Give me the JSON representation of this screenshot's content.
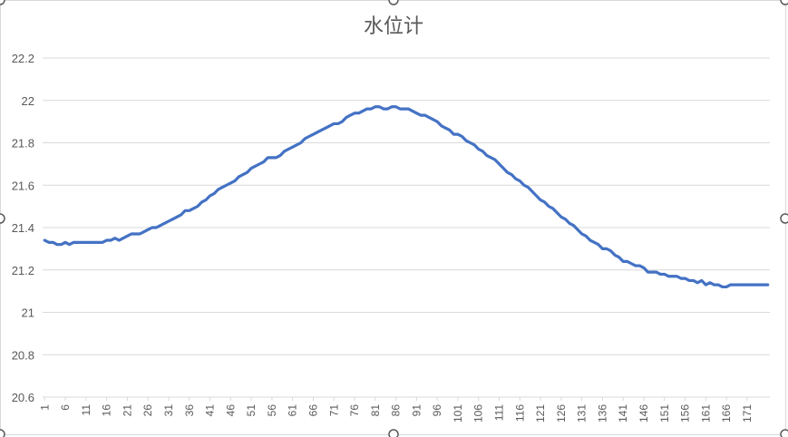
{
  "chart_data": {
    "type": "line",
    "title": "水位计",
    "xlabel": "",
    "ylabel": "",
    "ylim": [
      20.6,
      22.2
    ],
    "y_ticks": [
      "20.6",
      "20.8",
      "21",
      "21.2",
      "21.4",
      "21.6",
      "21.8",
      "22",
      "22.2"
    ],
    "x_tick_labels": [
      "1",
      "6",
      "11",
      "16",
      "21",
      "26",
      "31",
      "36",
      "41",
      "46",
      "51",
      "56",
      "61",
      "66",
      "71",
      "76",
      "81",
      "86",
      "91",
      "96",
      "101",
      "106",
      "111",
      "116",
      "121",
      "126",
      "131",
      "136",
      "141",
      "146",
      "151",
      "156",
      "161",
      "166",
      "171"
    ],
    "grid": "horizontal",
    "legend": "none",
    "series": [
      {
        "color": "#4472c4",
        "values": [
          21.34,
          21.33,
          21.33,
          21.32,
          21.32,
          21.33,
          21.32,
          21.33,
          21.33,
          21.33,
          21.33,
          21.33,
          21.33,
          21.33,
          21.33,
          21.34,
          21.34,
          21.35,
          21.34,
          21.35,
          21.36,
          21.37,
          21.37,
          21.37,
          21.38,
          21.39,
          21.4,
          21.4,
          21.41,
          21.42,
          21.43,
          21.44,
          21.45,
          21.46,
          21.48,
          21.48,
          21.49,
          21.5,
          21.52,
          21.53,
          21.55,
          21.56,
          21.58,
          21.59,
          21.6,
          21.61,
          21.62,
          21.64,
          21.65,
          21.66,
          21.68,
          21.69,
          21.7,
          21.71,
          21.73,
          21.73,
          21.73,
          21.74,
          21.76,
          21.77,
          21.78,
          21.79,
          21.8,
          21.82,
          21.83,
          21.84,
          21.85,
          21.86,
          21.87,
          21.88,
          21.89,
          21.89,
          21.9,
          21.92,
          21.93,
          21.94,
          21.94,
          21.95,
          21.96,
          21.96,
          21.97,
          21.97,
          21.96,
          21.96,
          21.97,
          21.97,
          21.96,
          21.96,
          21.96,
          21.95,
          21.94,
          21.93,
          21.93,
          21.92,
          21.91,
          21.9,
          21.88,
          21.87,
          21.86,
          21.84,
          21.84,
          21.83,
          21.81,
          21.8,
          21.79,
          21.77,
          21.76,
          21.74,
          21.73,
          21.72,
          21.7,
          21.68,
          21.66,
          21.65,
          21.63,
          21.62,
          21.6,
          21.59,
          21.57,
          21.55,
          21.53,
          21.52,
          21.5,
          21.49,
          21.47,
          21.45,
          21.44,
          21.42,
          21.41,
          21.39,
          21.37,
          21.36,
          21.34,
          21.33,
          21.32,
          21.3,
          21.3,
          21.29,
          21.27,
          21.26,
          21.24,
          21.24,
          21.23,
          21.22,
          21.22,
          21.21,
          21.19,
          21.19,
          21.19,
          21.18,
          21.18,
          21.17,
          21.17,
          21.17,
          21.16,
          21.16,
          21.15,
          21.15,
          21.14,
          21.15,
          21.13,
          21.14,
          21.13,
          21.13,
          21.12,
          21.12,
          21.13,
          21.13,
          21.13,
          21.13,
          21.13,
          21.13,
          21.13,
          21.13,
          21.13,
          21.13
        ]
      }
    ]
  }
}
